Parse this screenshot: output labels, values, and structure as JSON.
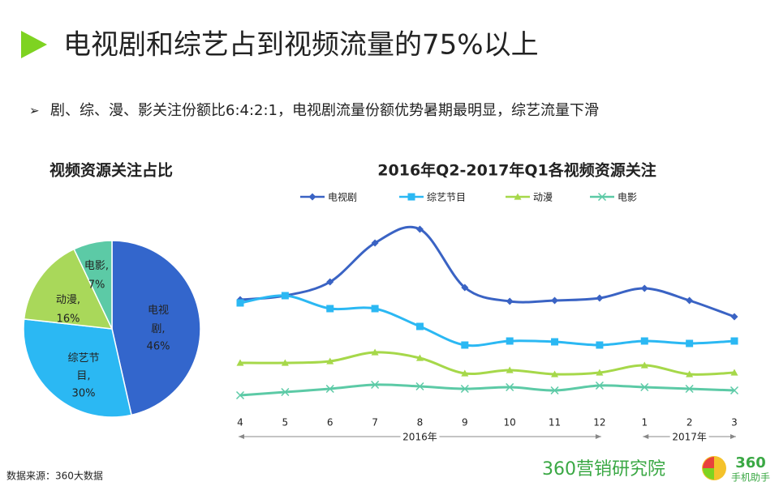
{
  "header": {
    "title": "电视剧和综艺占到视频流量的75%以上",
    "bullet": "剧、综、漫、影关注份额比6:4:2:1，电视剧流量份额优势暑期最明显，综艺流量下滑"
  },
  "chart_data": [
    {
      "type": "pie",
      "title": "视频资源关注占比",
      "categories": [
        "电视剧,",
        "综艺节目,",
        "动漫,",
        "电影,"
      ],
      "values": [
        46,
        30,
        16,
        7
      ],
      "value_labels": [
        "46%",
        "30%",
        "16%",
        "7%"
      ],
      "colors": [
        "#3366cc",
        "#2bb8f3",
        "#a9d85a",
        "#5ccaa6"
      ]
    },
    {
      "type": "line",
      "title": "2016年Q2-2017年Q1各视频资源关注",
      "categories": [
        "4",
        "5",
        "6",
        "7",
        "8",
        "9",
        "10",
        "11",
        "12",
        "1",
        "2",
        "3"
      ],
      "year_labels": [
        "2016年",
        "2017年"
      ],
      "ylim": [
        0,
        260
      ],
      "series": [
        {
          "name": "电视剧",
          "color": "#3a63c4",
          "marker": "diamond",
          "values": [
            150,
            155,
            172,
            220,
            237,
            165,
            148,
            149,
            152,
            164,
            149,
            129
          ]
        },
        {
          "name": "综艺节目",
          "color": "#2bb8f3",
          "marker": "square",
          "values": [
            146,
            155,
            139,
            139,
            117,
            94,
            99,
            98,
            94,
            99,
            96,
            99
          ]
        },
        {
          "name": "动漫",
          "color": "#a6d84a",
          "marker": "triangle",
          "values": [
            72,
            72,
            74,
            85,
            78,
            59,
            63,
            58,
            60,
            69,
            58,
            60
          ]
        },
        {
          "name": "电影",
          "color": "#5ccaa6",
          "marker": "x",
          "values": [
            32,
            36,
            40,
            45,
            43,
            40,
            42,
            38,
            44,
            42,
            40,
            38
          ]
        }
      ]
    }
  ],
  "footer": {
    "source": "数据来源：360大数据",
    "logo1": "360营销研究院",
    "logo2_top": "360",
    "logo2_bottom": "手机助手"
  }
}
